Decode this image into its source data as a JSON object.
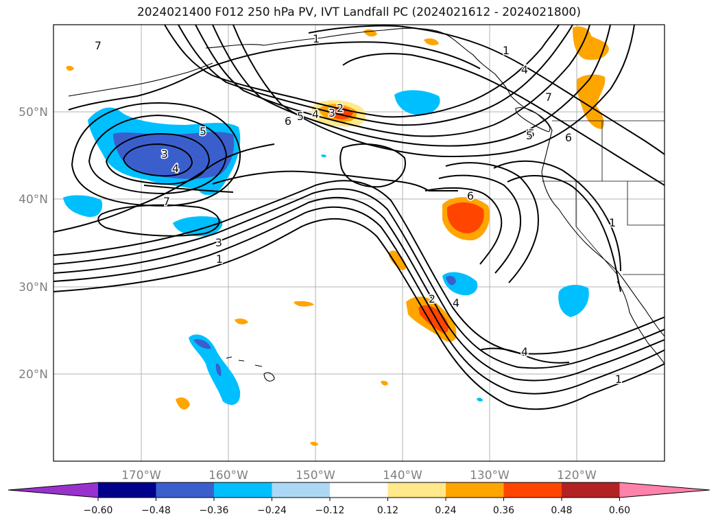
{
  "title": "2024021400 F012 250 hPa PV, IVT Landfall PC (2024021612 - 2024021800)",
  "axes": {
    "lon_labels": [
      "170°W",
      "160°W",
      "150°W",
      "140°W",
      "130°W",
      "120°W"
    ],
    "lat_labels": [
      "50°N",
      "40°N",
      "30°N",
      "20°N"
    ]
  },
  "colorbar": {
    "tick_labels": [
      "−0.60",
      "−0.48",
      "−0.36",
      "−0.24",
      "−0.12",
      "0.12",
      "0.24",
      "0.36",
      "0.48",
      "0.60"
    ],
    "colors": [
      "#9932cc",
      "#00008b",
      "#3a5fcd",
      "#00bfff",
      "#add8f5",
      "#ffffff",
      "#ffe98a",
      "#ffa500",
      "#ff4500",
      "#b22222",
      "#ff82ab"
    ]
  },
  "contour_labels": [
    "7",
    "1",
    "5",
    "6",
    "5",
    "4",
    "3",
    "2",
    "5",
    "3",
    "4",
    "7",
    "3",
    "1",
    "6",
    "1",
    "4",
    "1",
    "7",
    "5",
    "6",
    "1",
    "2",
    "4",
    "4",
    "1"
  ]
}
